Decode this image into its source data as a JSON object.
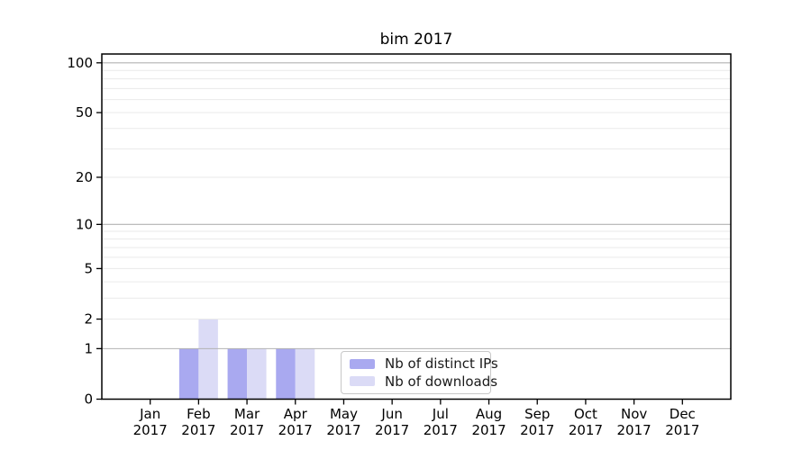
{
  "chart_data": {
    "type": "bar",
    "title": "bim 2017",
    "categories": [
      "Jan",
      "Feb",
      "Mar",
      "Apr",
      "May",
      "Jun",
      "Jul",
      "Aug",
      "Sep",
      "Oct",
      "Nov",
      "Dec"
    ],
    "x_sublabel": "2017",
    "series": [
      {
        "name": "Nb of distinct IPs",
        "color": "#a9a9f0",
        "values": [
          0,
          1,
          1,
          1,
          0,
          0,
          0,
          0,
          0,
          0,
          0,
          0
        ]
      },
      {
        "name": "Nb of downloads",
        "color": "#dbdbf6",
        "values": [
          0,
          2,
          1,
          1,
          0,
          0,
          0,
          0,
          0,
          0,
          0,
          0
        ]
      }
    ],
    "xlabel": "",
    "ylabel": "",
    "yscale": "log1p",
    "ylim": [
      0,
      113
    ],
    "ytick_values": [
      0,
      1,
      2,
      5,
      10,
      20,
      50,
      100
    ],
    "grid": {
      "major_values": [
        1,
        10,
        100
      ],
      "minor_values": [
        2,
        3,
        4,
        5,
        6,
        7,
        8,
        9,
        20,
        30,
        40,
        50,
        60,
        70,
        80,
        90
      ],
      "major_color": "#b3b3b3",
      "minor_color": "#eaeaea"
    },
    "legend_position": "lower-center",
    "axis_color": "#000000"
  }
}
